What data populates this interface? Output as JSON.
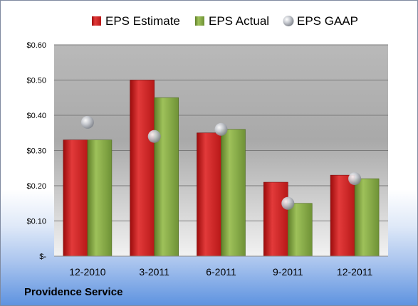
{
  "company": "Providence Service",
  "chart_data": {
    "type": "bar",
    "categories": [
      "12-2010",
      "3-2011",
      "6-2011",
      "9-2011",
      "12-2011"
    ],
    "series": [
      {
        "name": "EPS Estimate",
        "type": "bar",
        "values": [
          0.33,
          0.5,
          0.35,
          0.21,
          0.23
        ],
        "color": "#d42a2a"
      },
      {
        "name": "EPS Actual",
        "type": "bar",
        "values": [
          0.33,
          0.45,
          0.36,
          0.15,
          0.22
        ],
        "color": "#8cb04a"
      },
      {
        "name": "EPS GAAP",
        "type": "scatter",
        "values": [
          0.38,
          0.34,
          0.36,
          0.15,
          0.22
        ],
        "color": "#b0b4bc"
      }
    ],
    "ylim": [
      0,
      0.6
    ],
    "yticks": [
      0,
      0.1,
      0.2,
      0.3,
      0.4,
      0.5,
      0.6
    ],
    "ytick_labels": [
      "$-",
      "$0.10",
      "$0.20",
      "$0.30",
      "$0.40",
      "$0.50",
      "$0.60"
    ],
    "grid": true,
    "legend_position": "top"
  }
}
